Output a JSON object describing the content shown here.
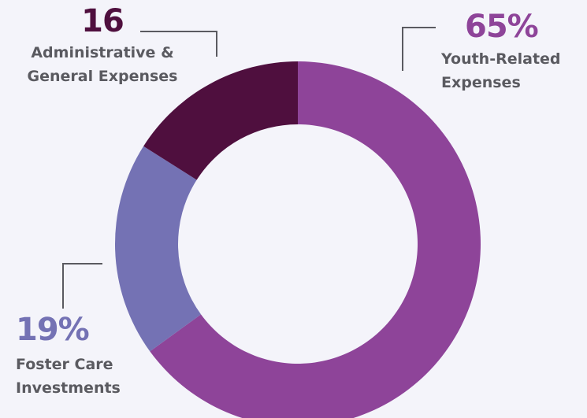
{
  "chart_data": {
    "type": "donut",
    "categories": [
      "Youth-Related Expenses",
      "Foster Care Investments",
      "Administrative & General Expenses"
    ],
    "values": [
      65,
      19,
      16
    ],
    "value_labels": [
      "65%",
      "19%",
      "16"
    ],
    "colors": [
      "#8e4499",
      "#7472b4",
      "#4f0f3e"
    ]
  }
}
